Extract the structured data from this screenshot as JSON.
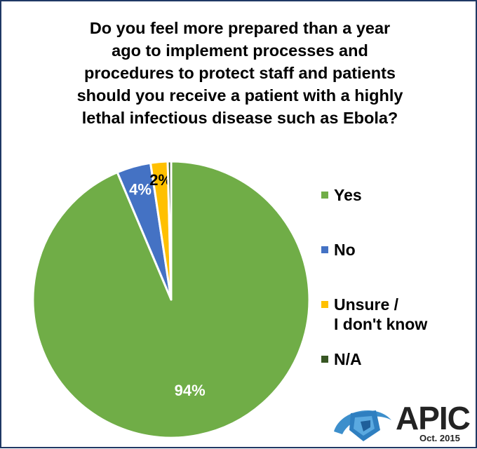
{
  "chart_data": {
    "type": "pie",
    "title": "Do you feel more prepared than a year\nago to implement processes and\nprocedures to protect staff and patients\nshould you receive a patient with a highly\nlethal infectious disease such as Ebola?",
    "slices": [
      {
        "label": "Yes",
        "value": 94,
        "display": "94%",
        "color": "#70ad47"
      },
      {
        "label": "No",
        "value": 4,
        "display": "4%",
        "color": "#4472c4"
      },
      {
        "label": "Unsure /\nI don't know",
        "value": 2,
        "display": "2%",
        "color": "#ffc000"
      },
      {
        "label": "N/A",
        "value": 0.4,
        "display": "",
        "color": "#375623"
      }
    ],
    "legend_position": "right"
  },
  "logo": {
    "text": "APIC",
    "date": "Oct. 2015"
  }
}
